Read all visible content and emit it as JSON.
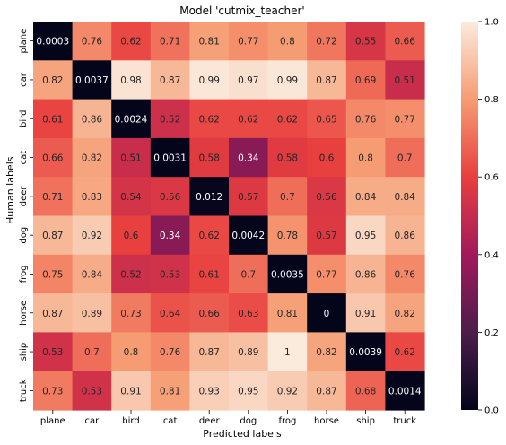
{
  "chart_data": {
    "type": "heatmap",
    "title": "Model 'cutmix_teacher'",
    "xlabel": "Predicted labels",
    "ylabel": "Human labels",
    "x_categories": [
      "plane",
      "car",
      "bird",
      "cat",
      "deer",
      "dog",
      "frog",
      "horse",
      "ship",
      "truck"
    ],
    "y_categories": [
      "plane",
      "car",
      "bird",
      "cat",
      "deer",
      "dog",
      "frog",
      "horse",
      "ship",
      "truck"
    ],
    "cell_labels": [
      [
        "0.0003",
        "0.76",
        "0.62",
        "0.71",
        "0.81",
        "0.77",
        "0.8",
        "0.72",
        "0.55",
        "0.66"
      ],
      [
        "0.82",
        "0.0037",
        "0.98",
        "0.87",
        "0.99",
        "0.97",
        "0.99",
        "0.87",
        "0.69",
        "0.51"
      ],
      [
        "0.61",
        "0.86",
        "0.0024",
        "0.52",
        "0.62",
        "0.62",
        "0.62",
        "0.65",
        "0.76",
        "0.77"
      ],
      [
        "0.66",
        "0.82",
        "0.51",
        "0.0031",
        "0.58",
        "0.34",
        "0.58",
        "0.6",
        "0.8",
        "0.7"
      ],
      [
        "0.71",
        "0.83",
        "0.54",
        "0.56",
        "0.012",
        "0.57",
        "0.7",
        "0.56",
        "0.84",
        "0.84"
      ],
      [
        "0.87",
        "0.92",
        "0.6",
        "0.34",
        "0.62",
        "0.0042",
        "0.78",
        "0.57",
        "0.95",
        "0.86"
      ],
      [
        "0.75",
        "0.84",
        "0.52",
        "0.53",
        "0.61",
        "0.7",
        "0.0035",
        "0.77",
        "0.86",
        "0.76"
      ],
      [
        "0.87",
        "0.89",
        "0.73",
        "0.64",
        "0.66",
        "0.63",
        "0.81",
        "0",
        "0.91",
        "0.82"
      ],
      [
        "0.53",
        "0.7",
        "0.8",
        "0.76",
        "0.87",
        "0.89",
        "1",
        "0.82",
        "0.0039",
        "0.62"
      ],
      [
        "0.73",
        "0.53",
        "0.91",
        "0.81",
        "0.93",
        "0.95",
        "0.92",
        "0.87",
        "0.68",
        "0.0014"
      ]
    ],
    "colorbar": {
      "range": [
        0,
        1
      ],
      "ticks": [
        "0.0",
        "0.2",
        "0.4",
        "0.6",
        "0.8",
        "1.0"
      ],
      "colormap": "rocket",
      "stops": [
        "#03051a",
        "#4c1d4b",
        "#a11a5b",
        "#e83f3f",
        "#f69c73",
        "#faebdd"
      ]
    },
    "grid": false
  }
}
